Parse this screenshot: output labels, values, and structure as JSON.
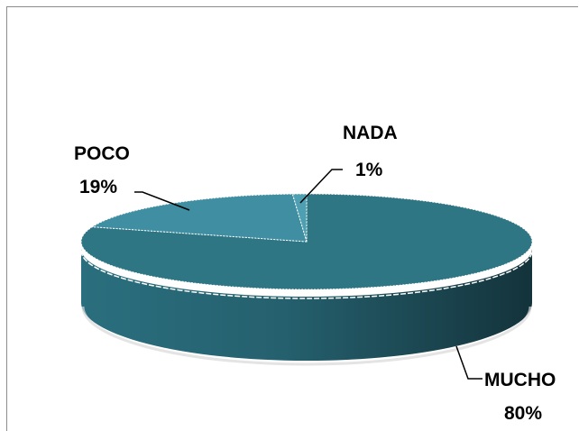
{
  "chart_data": {
    "type": "pie",
    "title": "",
    "three_d": true,
    "legend": "none",
    "slices": [
      {
        "label": "MUCHO",
        "percent_label": "80%",
        "value": 80,
        "color": "#2f7685"
      },
      {
        "label": "POCO",
        "percent_label": "19%",
        "value": 19,
        "color": "#3f8ea1"
      },
      {
        "label": "NADA",
        "percent_label": "1%",
        "value": 1,
        "color": "#4f9fb2"
      }
    ]
  }
}
